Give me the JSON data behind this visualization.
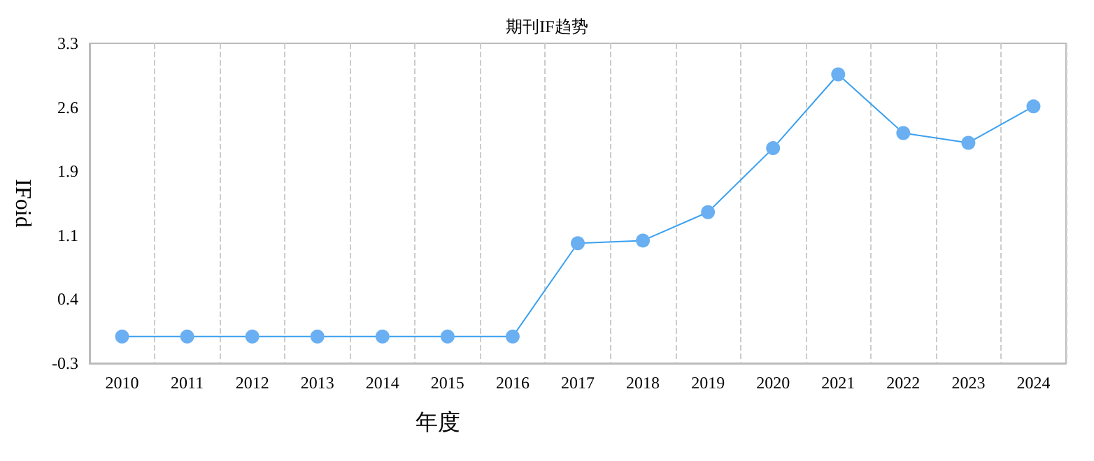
{
  "chart_data": {
    "type": "line",
    "title": "期刊IF趋势",
    "xlabel": "年度",
    "ylabel": "IFoid",
    "categories": [
      "2010",
      "2011",
      "2012",
      "2013",
      "2014",
      "2015",
      "2016",
      "2017",
      "2018",
      "2019",
      "2020",
      "2021",
      "2022",
      "2023",
      "2024"
    ],
    "series": [
      {
        "color": "#3aa0f0",
        "values": [
          0,
          0,
          0,
          0,
          0,
          0,
          0,
          1.05,
          1.08,
          1.4,
          2.12,
          2.95,
          2.29,
          2.18,
          2.59
        ]
      }
    ],
    "ylim": [
      -0.3,
      3.3
    ],
    "yticks": [
      {
        "value": -0.3,
        "label": "-0.3"
      },
      {
        "value": 0.42,
        "label": "0.4"
      },
      {
        "value": 1.14,
        "label": "1.1"
      },
      {
        "value": 1.86,
        "label": "1.9"
      },
      {
        "value": 2.58,
        "label": "2.6"
      },
      {
        "value": 3.3,
        "label": "3.3"
      }
    ],
    "grid": "x",
    "marker": "circle",
    "line_style": "solid"
  }
}
